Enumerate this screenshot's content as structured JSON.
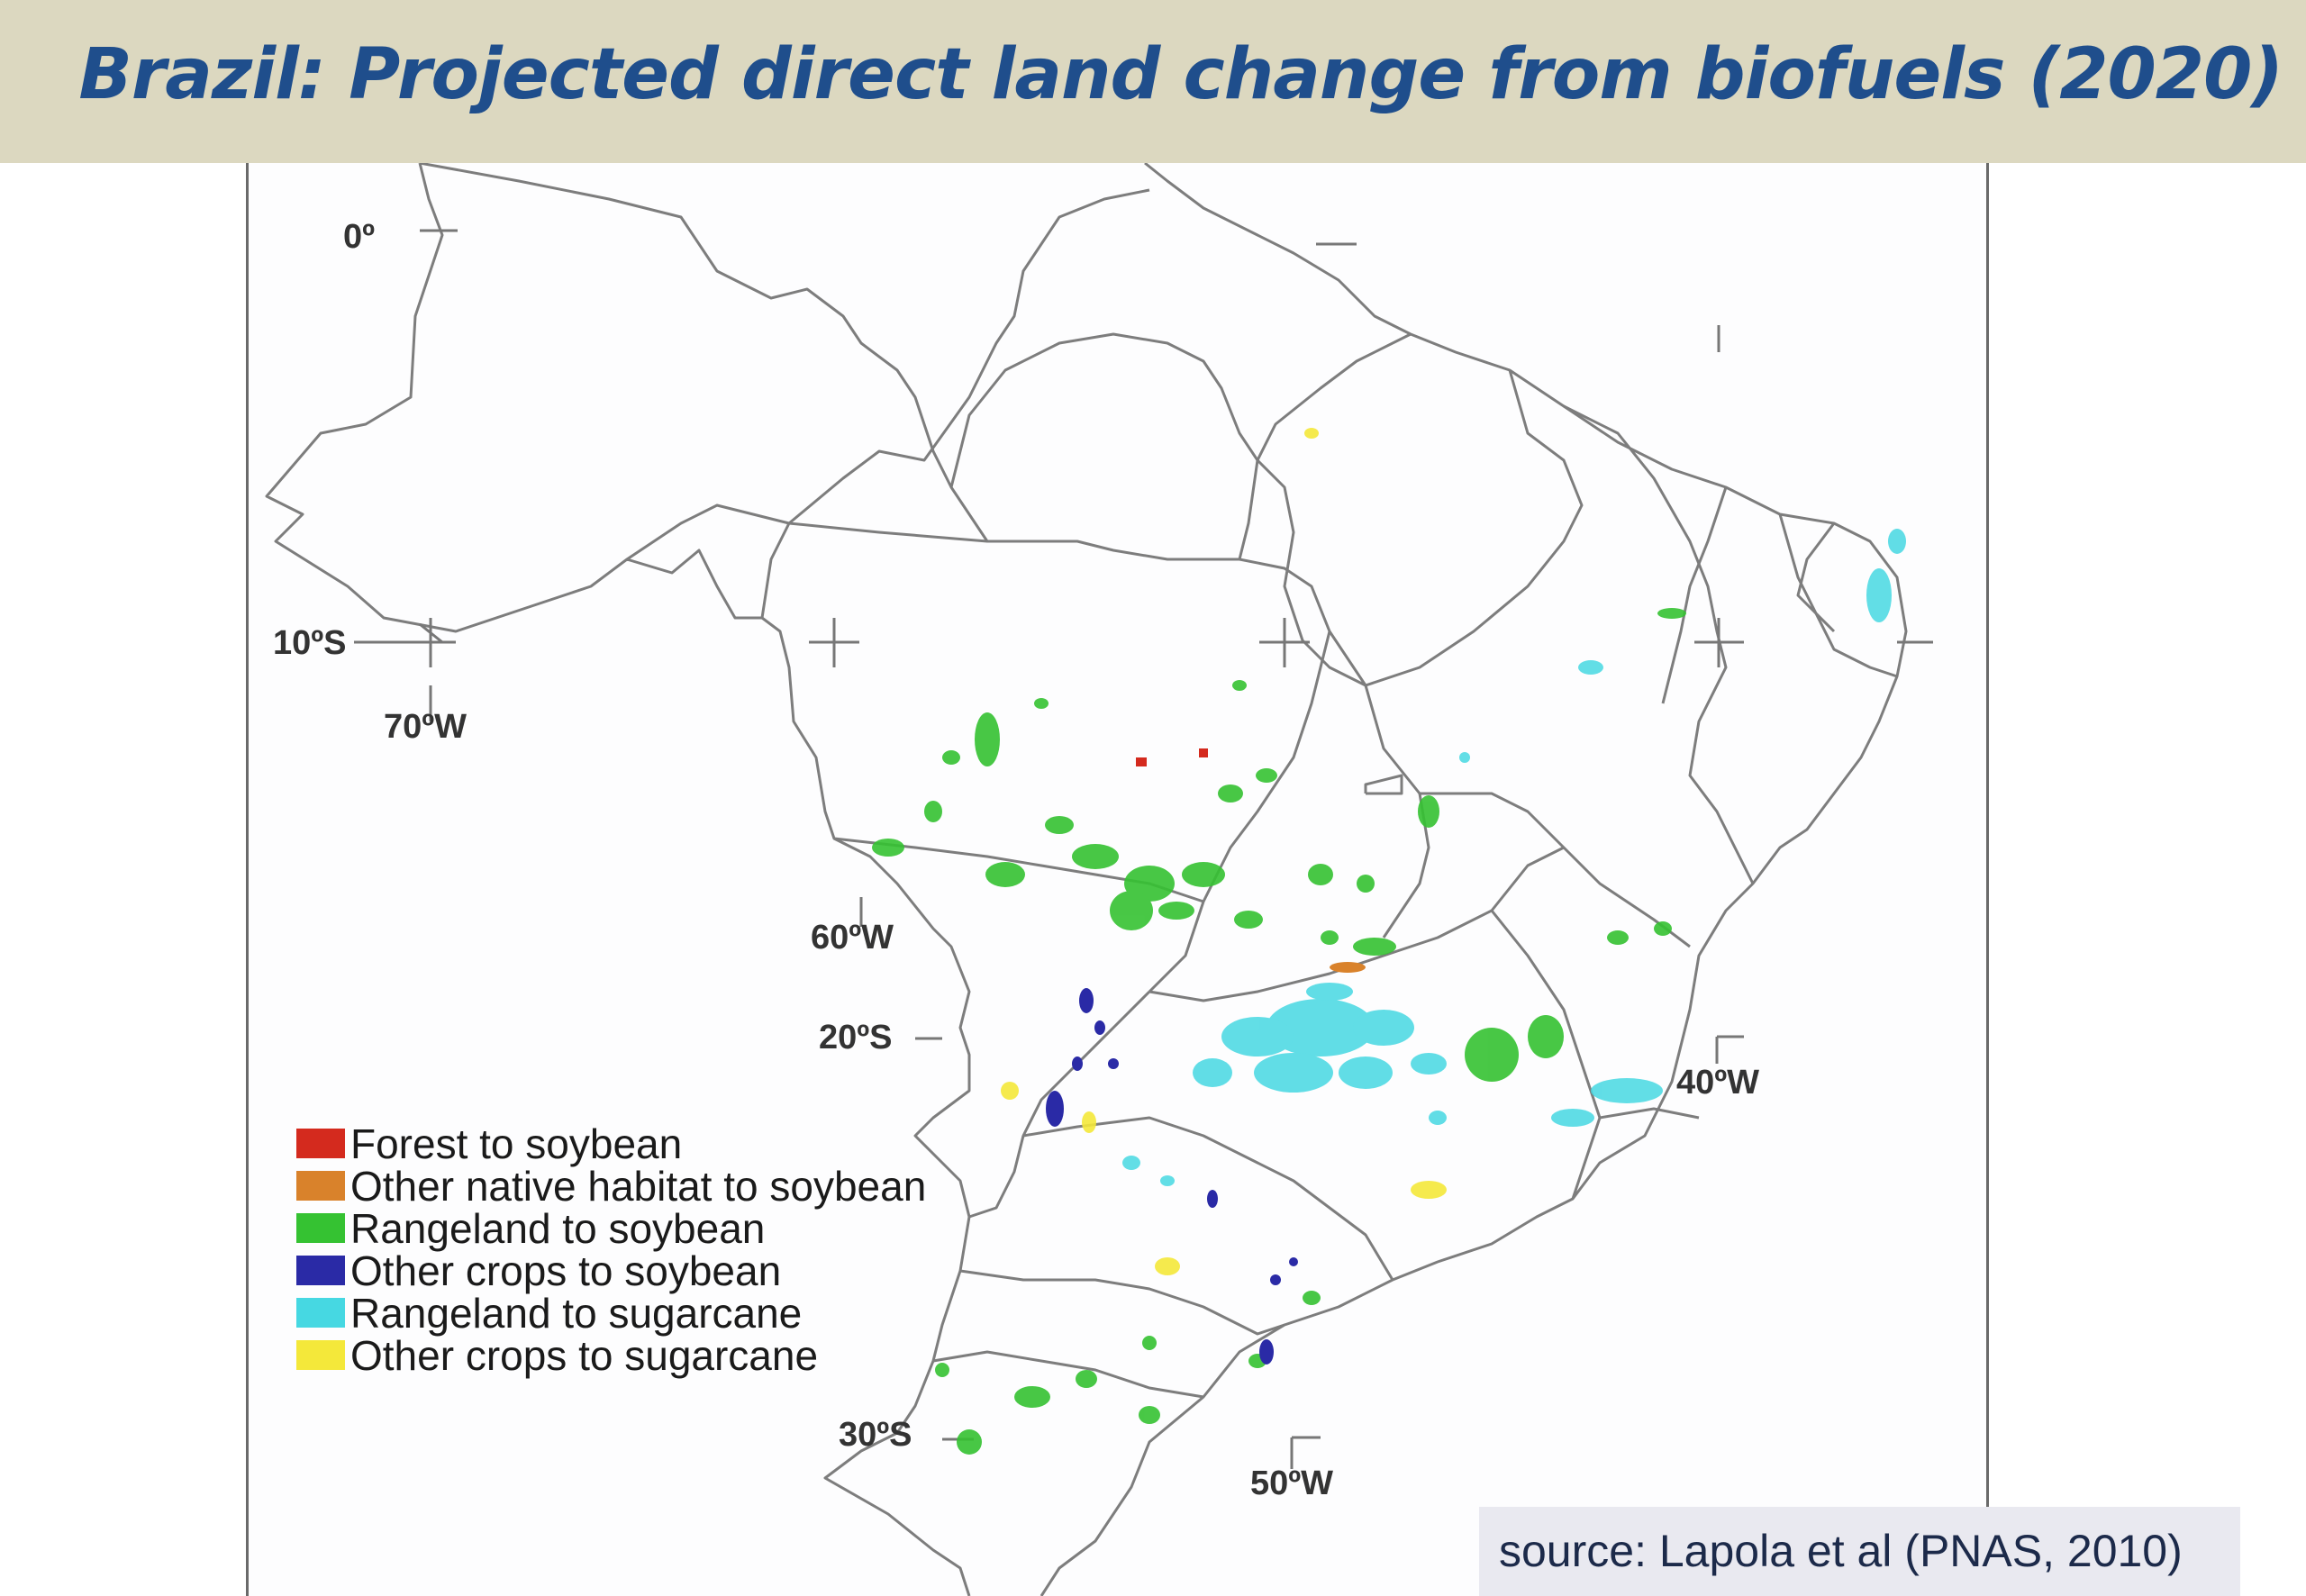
{
  "title": "Brazil: Projected direct land change from biofuels (2020)",
  "source": "source: Lapola et al (PNAS, 2010)",
  "coordinates": {
    "lat_0": "0º",
    "lat_10s": "10ºS",
    "lat_20s": "20ºS",
    "lat_30s": "30ºS",
    "lon_70w": "70ºW",
    "lon_60w": "60ºW",
    "lon_50w": "50ºW",
    "lon_40w": "40ºW"
  },
  "legend": [
    {
      "label": "Forest to soybean",
      "color": "#d42a1e"
    },
    {
      "label": "Other native habitat to soybean",
      "color": "#d9822b"
    },
    {
      "label": "Rangeland to soybean",
      "color": "#35c232"
    },
    {
      "label": "Other crops to soybean",
      "color": "#2a2aa6"
    },
    {
      "label": "Rangeland to sugarcane",
      "color": "#46d8e2"
    },
    {
      "label": "Other crops to sugarcane",
      "color": "#f4e83a"
    }
  ],
  "colors": {
    "title_bar": "#dcd8c0",
    "title_text": "#1f4e8c",
    "borders": "#777777"
  }
}
